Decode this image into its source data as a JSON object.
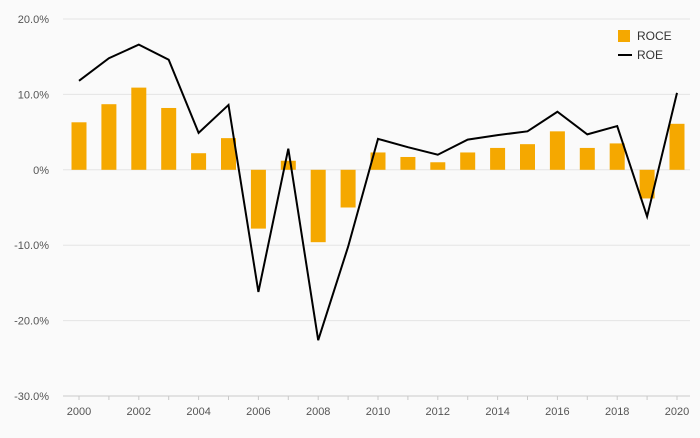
{
  "chart_data": {
    "type": "bar",
    "x": [
      2000,
      2001,
      2002,
      2003,
      2004,
      2005,
      2006,
      2007,
      2008,
      2009,
      2010,
      2011,
      2012,
      2013,
      2014,
      2015,
      2016,
      2017,
      2018,
      2019,
      2020
    ],
    "xtick_labels": [
      "2000",
      "2002",
      "2004",
      "2006",
      "2008",
      "2010",
      "2012",
      "2014",
      "2016",
      "2018",
      "2020"
    ],
    "ytick_labels": [
      "20.0%",
      "10.0%",
      "0%",
      "-10.0%",
      "-20.0%",
      "-30.0%"
    ],
    "yticks": [
      20,
      10,
      0,
      -10,
      -20,
      -30
    ],
    "ylim": [
      -30,
      20
    ],
    "grid": true,
    "legend_position": "top-right",
    "series": [
      {
        "name": "ROCE",
        "type": "bar",
        "color": "#f5a800",
        "values": [
          6.3,
          8.7,
          10.9,
          8.2,
          2.2,
          4.2,
          -7.8,
          1.2,
          -9.6,
          -5.0,
          2.3,
          1.7,
          1.0,
          2.3,
          2.9,
          3.4,
          5.1,
          2.9,
          3.5,
          -3.8,
          6.1
        ]
      },
      {
        "name": "ROE",
        "type": "line",
        "color": "#000000",
        "values": [
          11.8,
          14.8,
          16.6,
          14.6,
          4.9,
          8.6,
          -16.2,
          2.8,
          -22.6,
          -10.2,
          4.1,
          3.0,
          2.0,
          4.0,
          4.6,
          5.1,
          7.7,
          4.7,
          5.8,
          -6.2,
          10.2
        ]
      }
    ]
  }
}
